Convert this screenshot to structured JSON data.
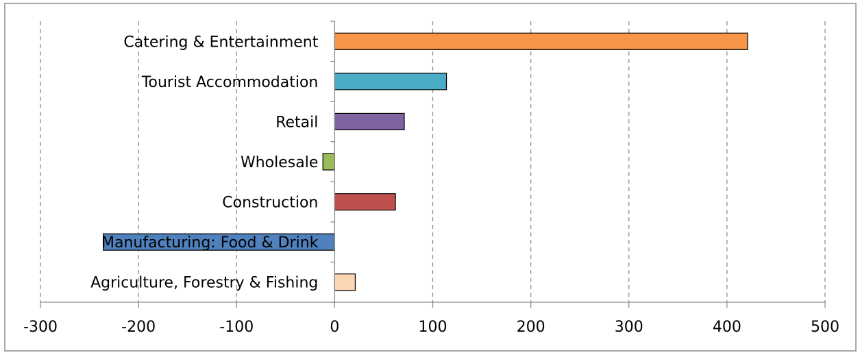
{
  "chart_data": {
    "type": "bar",
    "orientation": "horizontal",
    "title": "",
    "xlabel": "",
    "ylabel": "",
    "xlim": [
      -300,
      500
    ],
    "x_ticks": [
      -300,
      -200,
      -100,
      0,
      100,
      200,
      300,
      400,
      500
    ],
    "x_tick_labels": [
      "-300",
      "-200",
      "-100",
      "0",
      "100",
      "200",
      "300",
      "400",
      "500"
    ],
    "grid": "vertical dashed",
    "legend": "none",
    "categories": [
      "Catering & Entertainment",
      "Tourist Accommodation",
      "Retail",
      "Wholesale",
      "Construction",
      "Manufacturing: Food & Drink",
      "Agriculture, Forestry & Fishing"
    ],
    "values": [
      421,
      114,
      71,
      -12,
      62,
      -236,
      21
    ],
    "colors": [
      "#f79646",
      "#4bacc6",
      "#8064a2",
      "#9bbb59",
      "#c0504d",
      "#4f81bd",
      "#fcd5b5"
    ]
  }
}
